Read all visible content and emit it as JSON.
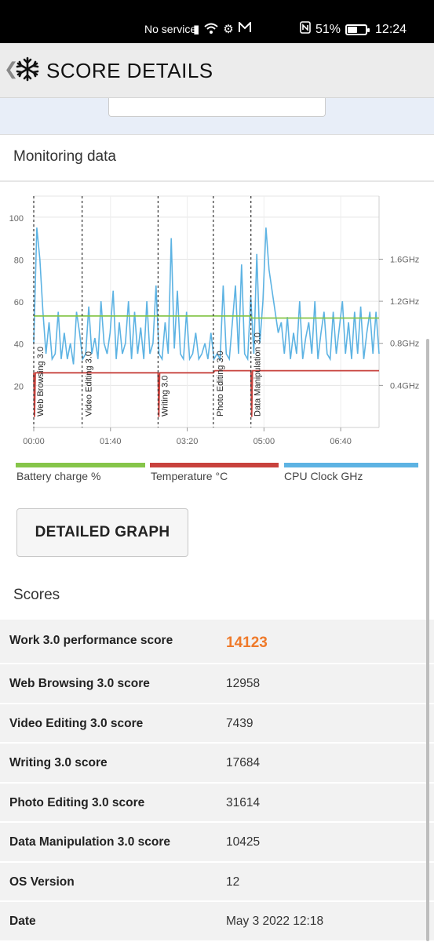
{
  "status_bar": {
    "carrier": "No service",
    "battery_percent": "51%",
    "battery_level": 0.51,
    "time": "12:24"
  },
  "header": {
    "title": "SCORE DETAILS",
    "back_icon": "chevron-left-icon",
    "logo_icon": "snowflake-icon"
  },
  "monitoring": {
    "title": "Monitoring data",
    "legend": [
      {
        "label": "Battery charge %",
        "color": "#86c54a"
      },
      {
        "label": "Temperature °C",
        "color": "#c8423d"
      },
      {
        "label": "CPU Clock GHz",
        "color": "#5db3e3"
      }
    ],
    "button_label": "DETAILED GRAPH"
  },
  "chart_data": {
    "type": "line",
    "x_ticks": [
      "00:00",
      "01:40",
      "03:20",
      "05:00",
      "06:40"
    ],
    "y_left_ticks": [
      "20",
      "40",
      "60",
      "80",
      "100"
    ],
    "y_right_ticks": [
      "0.4GHz",
      "0.8GHz",
      "1.2GHz",
      "1.6GHz"
    ],
    "ylim_left": [
      0,
      110
    ],
    "xlim_seconds": [
      0,
      450
    ],
    "grid": true,
    "annotations": [
      {
        "label": "Web Browsing 3.0",
        "t": 0
      },
      {
        "label": "Video Editing 3.0",
        "t": 63
      },
      {
        "label": "Writing 3.0",
        "t": 162
      },
      {
        "label": "Photo Editing 3.0",
        "t": 234
      },
      {
        "label": "Data Manipulation 3.0",
        "t": 283
      }
    ],
    "series": [
      {
        "name": "Battery charge %",
        "values": [
          [
            0,
            53
          ],
          [
            283,
            53
          ],
          [
            284,
            52
          ],
          [
            450,
            52
          ]
        ]
      },
      {
        "name": "Temperature °C",
        "values": [
          [
            0,
            26
          ],
          [
            1,
            5
          ],
          [
            2,
            26
          ],
          [
            162,
            26
          ],
          [
            163,
            5
          ],
          [
            164,
            26
          ],
          [
            234,
            26
          ],
          [
            236,
            27
          ],
          [
            283,
            27
          ],
          [
            284,
            5
          ],
          [
            285,
            27
          ],
          [
            450,
            27
          ]
        ]
      },
      {
        "name": "CPU Clock GHz",
        "values": [
          0.8,
          1.9,
          1.6,
          1.1,
          0.7,
          1.0,
          0.65,
          0.7,
          1.1,
          0.65,
          0.9,
          0.65,
          0.8,
          0.6,
          1.1,
          0.9,
          0.65,
          0.7,
          1.15,
          0.7,
          0.85,
          0.65,
          1.2,
          0.8,
          0.7,
          0.9,
          1.3,
          0.65,
          1.0,
          0.7,
          0.8,
          1.2,
          0.65,
          1.1,
          0.7,
          0.95,
          0.65,
          1.2,
          0.7,
          0.8,
          1.35,
          0.7,
          0.65,
          1.0,
          0.7,
          1.8,
          0.75,
          1.3,
          0.7,
          0.65,
          1.1,
          0.65,
          0.7,
          0.9,
          0.65,
          0.7,
          0.8,
          0.65,
          0.9,
          0.65,
          0.7,
          0.65,
          1.35,
          0.7,
          0.65,
          1.0,
          1.35,
          0.7,
          1.55,
          0.7,
          0.65,
          1.25,
          0.7,
          1.65,
          0.8,
          1.2,
          1.9,
          1.5,
          1.3,
          1.1,
          0.9,
          1.0,
          0.7,
          1.05,
          0.65,
          0.9,
          0.7,
          1.2,
          0.65,
          0.85,
          1.0,
          0.7,
          1.2,
          0.65,
          0.9,
          1.1,
          0.7,
          0.65,
          1.1,
          0.7,
          0.95,
          1.2,
          0.7,
          1.0,
          0.65,
          1.1,
          0.7,
          1.15,
          0.65,
          0.9,
          1.1,
          0.7,
          1.1,
          0.7
        ]
      }
    ]
  },
  "scores": {
    "title": "Scores",
    "rows": [
      {
        "label": "Work 3.0 performance score",
        "value": "14123"
      },
      {
        "label": "Web Browsing 3.0 score",
        "value": "12958"
      },
      {
        "label": "Video Editing 3.0 score",
        "value": "7439"
      },
      {
        "label": "Writing 3.0 score",
        "value": "17684"
      },
      {
        "label": "Photo Editing 3.0 score",
        "value": "31614"
      },
      {
        "label": "Data Manipulation 3.0 score",
        "value": "10425"
      },
      {
        "label": "OS Version",
        "value": "12"
      },
      {
        "label": "Date",
        "value": "May 3 2022 12:18"
      }
    ]
  }
}
